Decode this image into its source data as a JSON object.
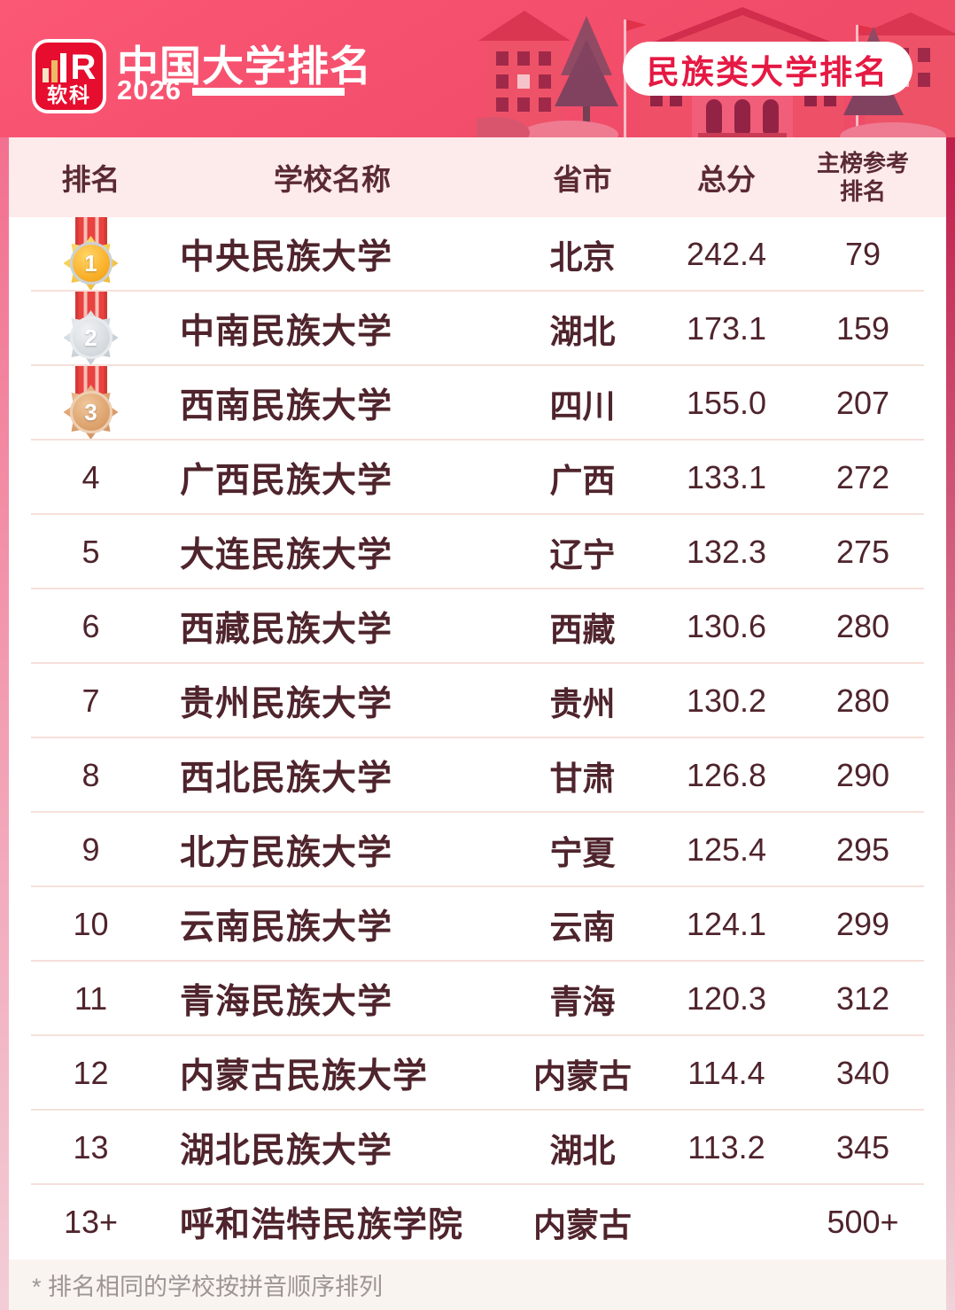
{
  "brand": {
    "logo_text": "软科",
    "logo_letter": "R"
  },
  "header": {
    "title": "中国大学排名",
    "year": "2026",
    "badge": "民族类大学排名"
  },
  "chart_data": {
    "type": "table",
    "title": "中国大学排名 2026 民族类大学排名",
    "columns": [
      "排名",
      "学校名称",
      "省市",
      "总分",
      "主榜参考排名"
    ],
    "rows": [
      {
        "rank": "1",
        "medal": "gold",
        "school": "中央民族大学",
        "province": "北京",
        "score": "242.4",
        "ref_rank": "79"
      },
      {
        "rank": "2",
        "medal": "silver",
        "school": "中南民族大学",
        "province": "湖北",
        "score": "173.1",
        "ref_rank": "159"
      },
      {
        "rank": "3",
        "medal": "bronze",
        "school": "西南民族大学",
        "province": "四川",
        "score": "155.0",
        "ref_rank": "207"
      },
      {
        "rank": "4",
        "school": "广西民族大学",
        "province": "广西",
        "score": "133.1",
        "ref_rank": "272"
      },
      {
        "rank": "5",
        "school": "大连民族大学",
        "province": "辽宁",
        "score": "132.3",
        "ref_rank": "275"
      },
      {
        "rank": "6",
        "school": "西藏民族大学",
        "province": "西藏",
        "score": "130.6",
        "ref_rank": "280"
      },
      {
        "rank": "7",
        "school": "贵州民族大学",
        "province": "贵州",
        "score": "130.2",
        "ref_rank": "280"
      },
      {
        "rank": "8",
        "school": "西北民族大学",
        "province": "甘肃",
        "score": "126.8",
        "ref_rank": "290"
      },
      {
        "rank": "9",
        "school": "北方民族大学",
        "province": "宁夏",
        "score": "125.4",
        "ref_rank": "295"
      },
      {
        "rank": "10",
        "school": "云南民族大学",
        "province": "云南",
        "score": "124.1",
        "ref_rank": "299"
      },
      {
        "rank": "11",
        "school": "青海民族大学",
        "province": "青海",
        "score": "120.3",
        "ref_rank": "312"
      },
      {
        "rank": "12",
        "school": "内蒙古民族大学",
        "province": "内蒙古",
        "score": "114.4",
        "ref_rank": "340"
      },
      {
        "rank": "13",
        "school": "湖北民族大学",
        "province": "湖北",
        "score": "113.2",
        "ref_rank": "345"
      },
      {
        "rank": "13+",
        "school": "呼和浩特民族学院",
        "province": "内蒙古",
        "score": "",
        "ref_rank": "500+"
      }
    ]
  },
  "footnote": "* 排名相同的学校按拼音顺序排列",
  "colors": {
    "accent_red": "#e51943",
    "maroon_text": "#4f242c",
    "header_band": "#fdeaeb",
    "hero_gradient_start": "#fb5876",
    "hero_gradient_end": "#ec4a66",
    "medal_ribbon": "#ea4141"
  }
}
